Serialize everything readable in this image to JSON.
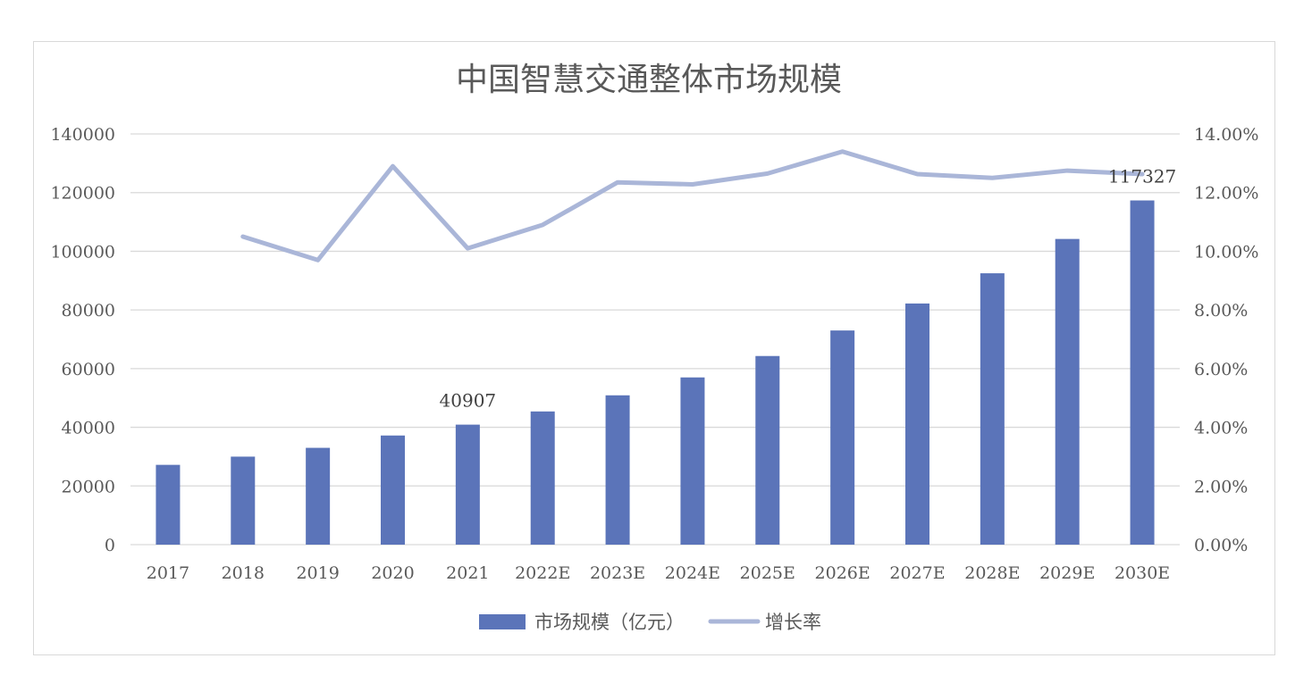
{
  "chart_data": {
    "type": "bar+line",
    "title": "中国智慧交通整体市场规模",
    "categories": [
      "2017",
      "2018",
      "2019",
      "2020",
      "2021",
      "2022E",
      "2023E",
      "2024E",
      "2025E",
      "2026E",
      "2027E",
      "2028E",
      "2029E",
      "2030E"
    ],
    "series": [
      {
        "name": "市场规模（亿元）",
        "type": "bar",
        "axis": "left",
        "color": "#5b74b9",
        "values": [
          27200,
          30000,
          33000,
          37200,
          40907,
          45400,
          50900,
          57000,
          64300,
          73000,
          82200,
          92500,
          104200,
          117327
        ]
      },
      {
        "name": "增长率",
        "type": "line",
        "axis": "right",
        "color": "#aab6d8",
        "values": [
          null,
          10.5,
          9.7,
          12.9,
          10.1,
          10.9,
          12.35,
          12.28,
          12.65,
          13.4,
          12.63,
          12.5,
          12.75,
          12.63
        ]
      }
    ],
    "y_left": {
      "min": 0,
      "max": 140000,
      "ticks": [
        "0",
        "20000",
        "40000",
        "60000",
        "80000",
        "100000",
        "120000",
        "140000"
      ]
    },
    "y_right": {
      "min": 0,
      "max": 14,
      "ticks": [
        "0.00%",
        "2.00%",
        "4.00%",
        "6.00%",
        "8.00%",
        "10.00%",
        "12.00%",
        "14.00%"
      ]
    },
    "data_labels": [
      {
        "category": "2021",
        "text": "40907"
      },
      {
        "category": "2030E",
        "text": "117327"
      }
    ],
    "grid": true,
    "legend_position": "bottom"
  }
}
